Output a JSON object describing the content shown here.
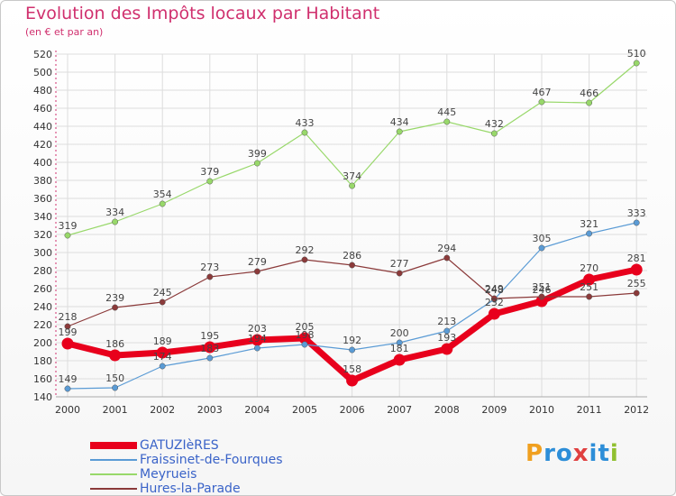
{
  "title": "Evolution des Impôts locaux par Habitant",
  "subtitle": "(en € et par an)",
  "brand": {
    "letters": [
      "P",
      "r",
      "o",
      "x",
      "i",
      "t",
      "i"
    ],
    "colors": [
      "#f0a020",
      "#2d8ed8",
      "#2d8ed8",
      "#e04040",
      "#2d8ed8",
      "#2d8ed8",
      "#90c030"
    ]
  },
  "chart_data": {
    "type": "line",
    "title": "Evolution des Impôts locaux par Habitant",
    "subtitle": "(en € et par an)",
    "x": [
      "2000",
      "2001",
      "2002",
      "2003",
      "2004",
      "2005",
      "2006",
      "2007",
      "2008",
      "2009",
      "2010",
      "2011",
      "2012"
    ],
    "ylim": [
      140,
      520
    ],
    "yticks": [
      140,
      160,
      180,
      200,
      220,
      240,
      260,
      280,
      300,
      320,
      340,
      360,
      380,
      400,
      420,
      440,
      460,
      480,
      500,
      520
    ],
    "grid": true,
    "legend": "bottom-left",
    "series": [
      {
        "name": "GATUZIèRES",
        "color": "#e8001c",
        "width": 7,
        "marker": 6.5,
        "values": [
          199,
          186,
          189,
          195,
          203,
          205,
          158,
          181,
          193,
          232,
          246,
          270,
          281
        ],
        "labels": [
          "199",
          "186",
          "189",
          "195",
          "203",
          "205",
          "158",
          "181",
          "193",
          "232",
          "246",
          "270",
          "281"
        ]
      },
      {
        "name": "Fraissinet-de-Fourques",
        "color": "#5a9bd5",
        "width": 1.2,
        "marker": 3.2,
        "values": [
          149,
          150,
          174,
          183,
          194,
          198,
          192,
          200,
          213,
          248,
          305,
          321,
          333
        ],
        "labels": [
          "149",
          "150",
          "174",
          "183",
          "194",
          "198",
          "192",
          "200",
          "213",
          "248",
          "305",
          "321",
          "333"
        ]
      },
      {
        "name": "Meyrueis",
        "color": "#98d86a",
        "width": 1.2,
        "marker": 3.2,
        "values": [
          319,
          334,
          354,
          379,
          399,
          433,
          374,
          434,
          445,
          432,
          467,
          466,
          510
        ],
        "labels": [
          "319",
          "334",
          "354",
          "379",
          "399",
          "433",
          "374",
          "434",
          "445",
          "432",
          "467",
          "466",
          "510"
        ]
      },
      {
        "name": "Hures-la-Parade",
        "color": "#8b3a3a",
        "width": 1.2,
        "marker": 3.2,
        "values": [
          218,
          239,
          245,
          273,
          279,
          292,
          286,
          277,
          294,
          249,
          251,
          251,
          255
        ],
        "labels": [
          "218",
          "239",
          "245",
          "273",
          "279",
          "292",
          "286",
          "277",
          "294",
          "249",
          "251",
          "251",
          "255"
        ]
      }
    ]
  }
}
